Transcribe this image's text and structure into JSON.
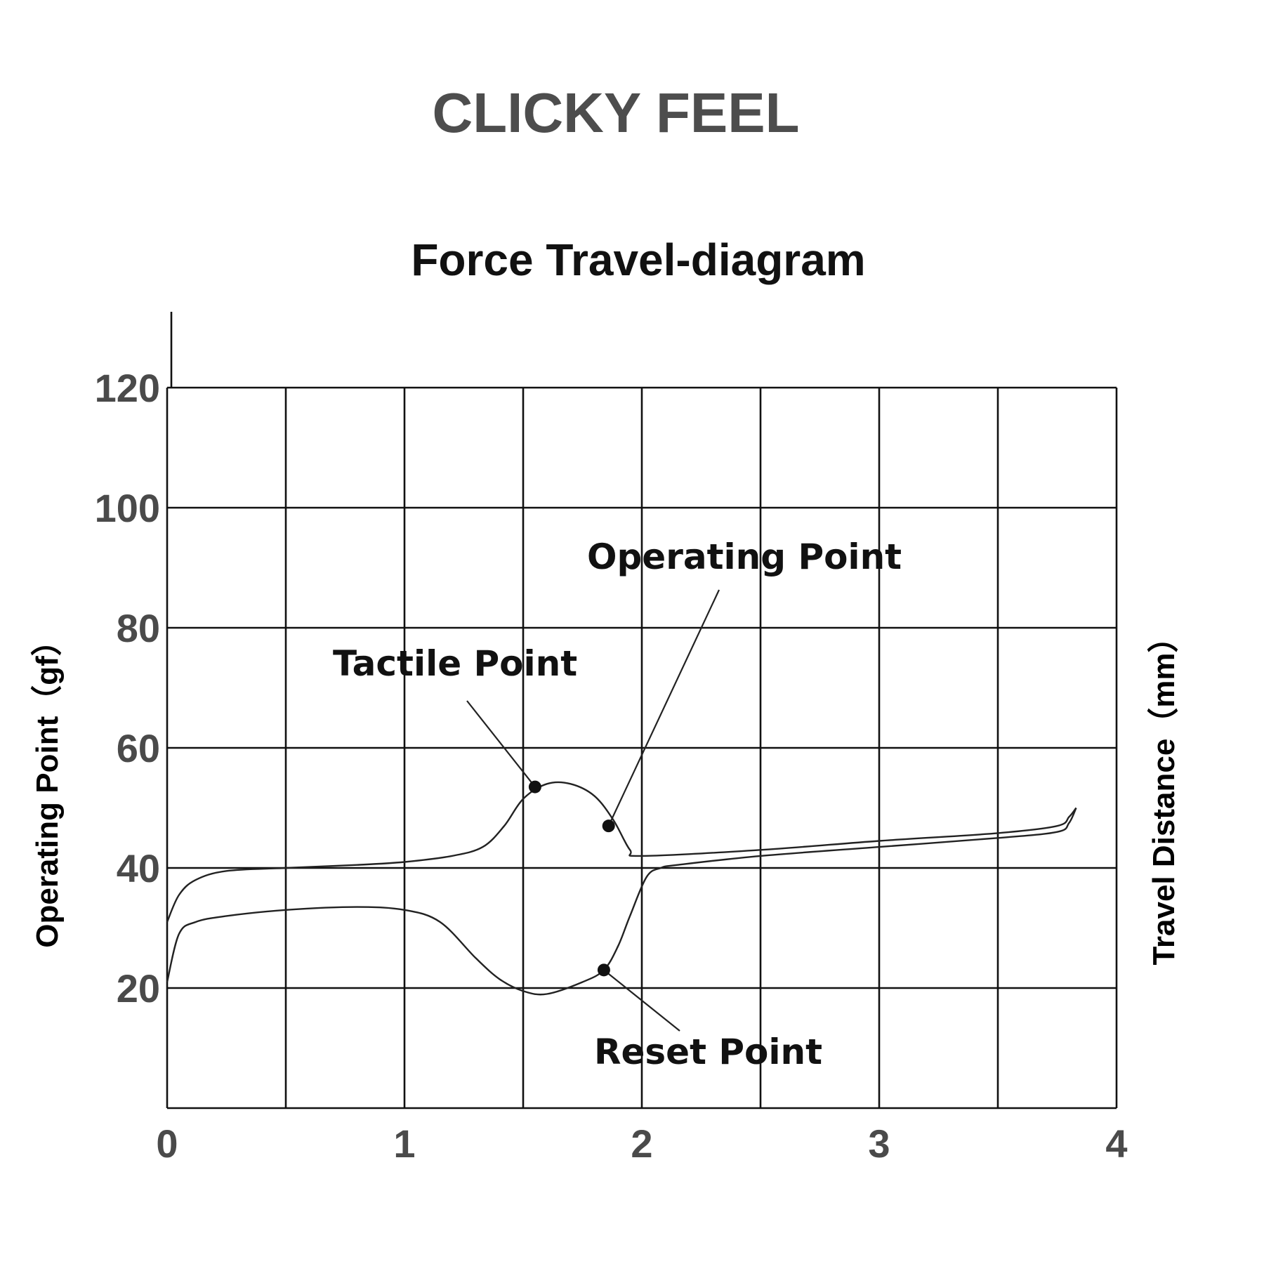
{
  "page_title": "CLICKY FEEL",
  "chart_data": {
    "type": "line",
    "title": "Force Travel-diagram",
    "ylabel": "Operating Point（gf）",
    "y2label": "Travel Distance（mm）",
    "xlabel": "",
    "xlim": [
      0,
      4
    ],
    "ylim": [
      0,
      120
    ],
    "x_ticks": [
      "0",
      "1",
      "2",
      "3",
      "4"
    ],
    "y_ticks": [
      "20",
      "40",
      "60",
      "80",
      "100",
      "120"
    ],
    "grid": true,
    "x_gridlines": [
      0,
      0.5,
      1,
      1.5,
      2,
      2.5,
      3,
      3.5,
      4
    ],
    "y_gridlines": [
      0,
      20,
      40,
      60,
      80,
      100,
      120
    ],
    "series": [
      {
        "points": [
          [
            0,
            31
          ],
          [
            0.05,
            35.5
          ],
          [
            0.12,
            38
          ],
          [
            0.25,
            39.5
          ],
          [
            0.5,
            40
          ],
          [
            0.8,
            40.5
          ],
          [
            1.0,
            41
          ],
          [
            1.2,
            42
          ],
          [
            1.33,
            43.5
          ],
          [
            1.42,
            47
          ],
          [
            1.5,
            51.5
          ],
          [
            1.6,
            54
          ],
          [
            1.7,
            54
          ],
          [
            1.8,
            52
          ],
          [
            1.88,
            48
          ],
          [
            1.95,
            43
          ],
          [
            2.0,
            42
          ],
          [
            2.5,
            43
          ],
          [
            3.0,
            44.5
          ],
          [
            3.5,
            45.8
          ],
          [
            3.75,
            47
          ],
          [
            3.8,
            48.5
          ],
          [
            3.83,
            50
          ]
        ]
      },
      {
        "points": [
          [
            3.83,
            50
          ],
          [
            3.8,
            47.5
          ],
          [
            3.75,
            46
          ],
          [
            3.5,
            45
          ],
          [
            3.0,
            43.5
          ],
          [
            2.5,
            42
          ],
          [
            2.15,
            40.5
          ],
          [
            2.08,
            40
          ],
          [
            2.02,
            38.5
          ],
          [
            1.95,
            32
          ],
          [
            1.9,
            27
          ],
          [
            1.84,
            23
          ],
          [
            1.75,
            21
          ],
          [
            1.6,
            19
          ],
          [
            1.5,
            19.5
          ],
          [
            1.4,
            21.5
          ],
          [
            1.3,
            25
          ],
          [
            1.15,
            31
          ],
          [
            1.0,
            33
          ],
          [
            0.8,
            33.5
          ],
          [
            0.5,
            33
          ],
          [
            0.25,
            32
          ],
          [
            0.12,
            31
          ],
          [
            0.05,
            29
          ],
          [
            0,
            21
          ]
        ]
      }
    ],
    "annotations": [
      {
        "text": "Tactile Point",
        "point": [
          1.55,
          53.5
        ]
      },
      {
        "text": "Operating Point",
        "point": [
          1.86,
          47
        ]
      },
      {
        "text": "Reset Point",
        "point": [
          1.84,
          23
        ]
      }
    ]
  }
}
